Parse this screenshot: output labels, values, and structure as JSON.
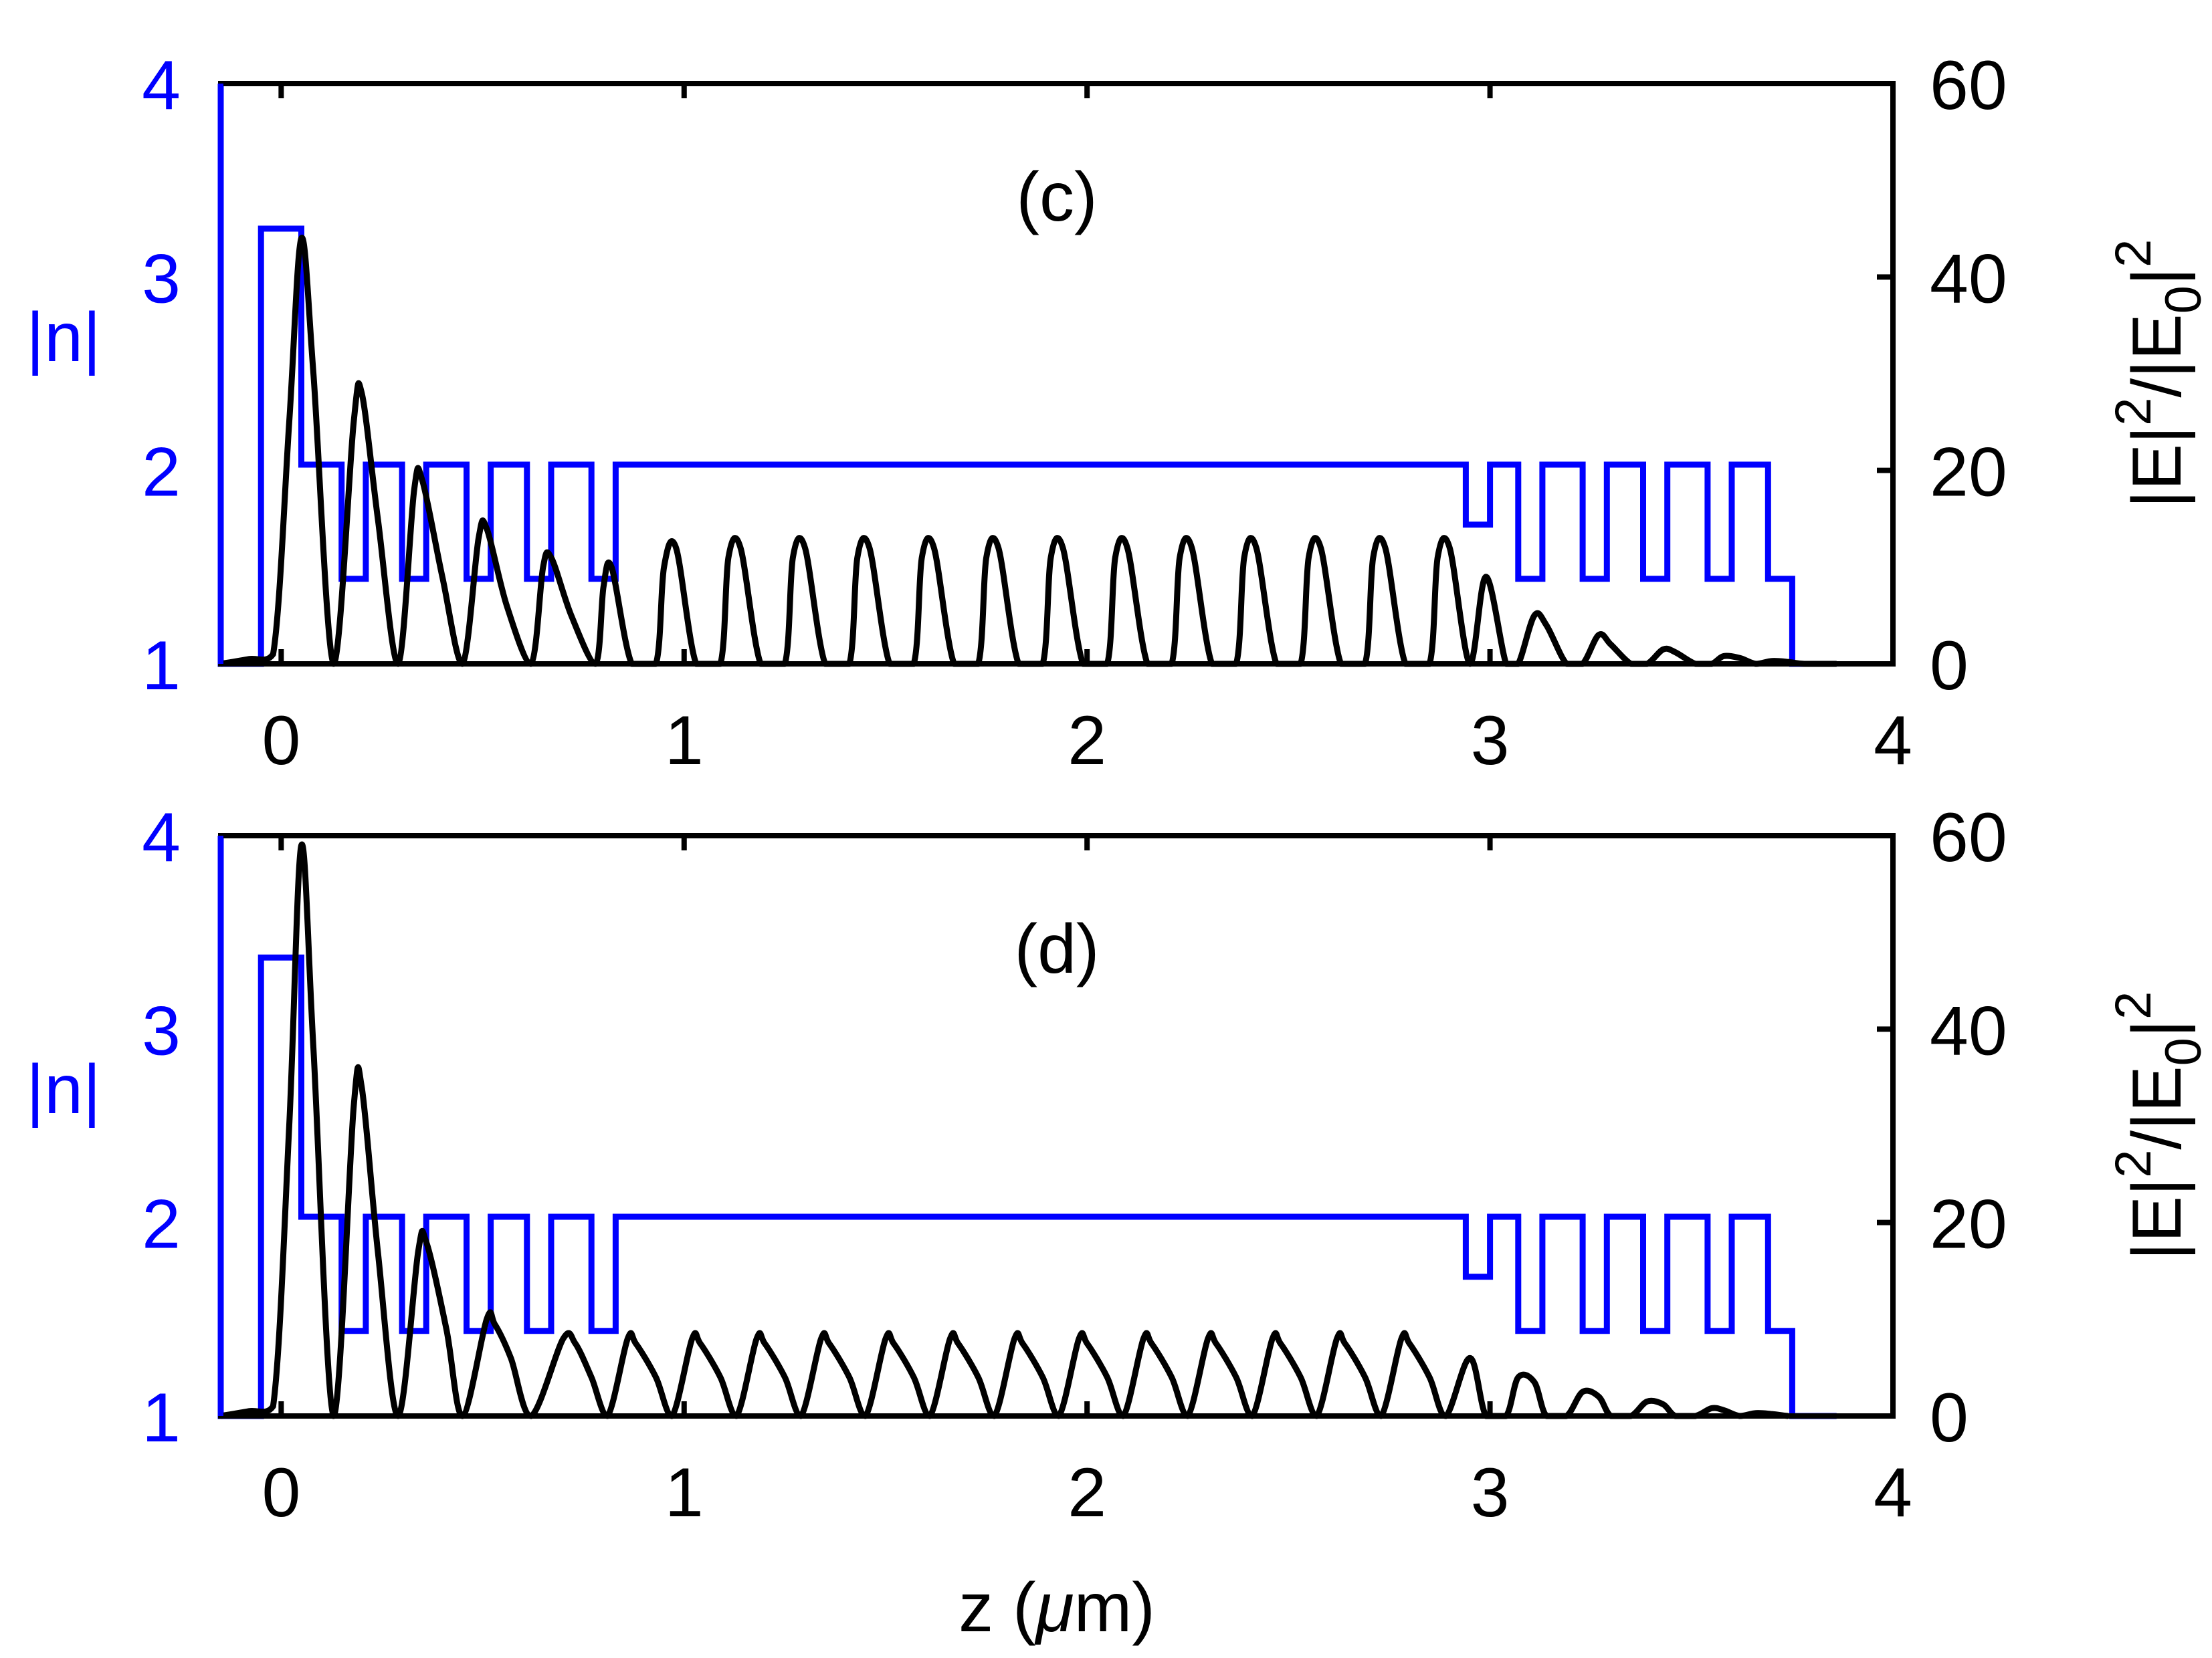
{
  "chart_data": [
    {
      "type": "line",
      "panel_label": "(c)",
      "x_axis": {
        "label": "",
        "range": [
          -0.15,
          4.0
        ],
        "ticks": [
          "0",
          "1",
          "2",
          "3",
          "4"
        ]
      },
      "y_left": {
        "label": "|n|",
        "range": [
          1,
          4
        ],
        "ticks": [
          "1",
          "2",
          "3",
          "4"
        ],
        "color": "#0000ff"
      },
      "y_right": {
        "label_base": "|E|",
        "sup1": "2",
        "mid": "/|E",
        "sub": "0",
        "close": "|",
        "sup2": "2",
        "range": [
          0,
          60
        ],
        "ticks": [
          "0",
          "20",
          "40",
          "60"
        ],
        "color": "#000000"
      },
      "index_profile": {
        "color": "#0000ff",
        "z": [
          -0.15,
          -0.15,
          -0.15,
          -0.1,
          -0.1,
          -0.05,
          -0.05,
          0.05,
          0.05,
          0.15,
          0.15,
          0.21,
          0.21,
          0.3,
          0.3,
          0.36,
          0.36,
          0.46,
          0.46,
          0.52,
          0.52,
          0.61,
          0.61,
          0.67,
          0.67,
          0.77,
          0.77,
          0.83,
          0.83,
          2.94,
          2.94,
          3.0,
          3.0,
          3.07,
          3.07,
          3.13,
          3.13,
          3.23,
          3.23,
          3.29,
          3.29,
          3.38,
          3.38,
          3.44,
          3.44,
          3.54,
          3.54,
          3.6,
          3.6,
          3.69,
          3.69,
          3.75,
          3.75,
          3.86
        ],
        "n": [
          4.0,
          1.0,
          1.0,
          1.0,
          1.0,
          1.0,
          3.25,
          3.25,
          2.03,
          2.03,
          1.44,
          1.44,
          2.03,
          2.03,
          1.44,
          1.44,
          2.03,
          2.03,
          1.44,
          1.44,
          2.03,
          2.03,
          1.44,
          1.44,
          2.03,
          2.03,
          1.44,
          1.44,
          2.03,
          2.03,
          1.72,
          1.72,
          2.03,
          2.03,
          1.44,
          1.44,
          2.03,
          2.03,
          1.44,
          1.44,
          2.03,
          2.03,
          1.44,
          1.44,
          2.03,
          2.03,
          1.44,
          1.44,
          2.03,
          2.03,
          1.44,
          1.44,
          1.0,
          1.0
        ]
      },
      "field_intensity": {
        "color": "#000000",
        "z": [
          -0.15,
          -0.08,
          -0.02,
          0.02,
          0.05,
          0.08,
          0.13,
          0.18,
          0.2,
          0.24,
          0.29,
          0.33,
          0.35,
          0.4,
          0.45,
          0.49,
          0.51,
          0.56,
          0.62,
          0.65,
          0.67,
          0.72,
          0.78,
          0.8,
          0.82,
          0.87,
          0.93,
          0.95,
          0.98,
          1.03,
          1.09,
          1.11,
          1.14,
          1.19,
          1.25,
          1.27,
          1.3,
          1.35,
          1.41,
          1.43,
          1.46,
          1.51,
          1.57,
          1.59,
          1.62,
          1.67,
          1.73,
          1.75,
          1.78,
          1.83,
          1.89,
          1.91,
          1.94,
          1.99,
          2.05,
          2.07,
          2.1,
          2.15,
          2.21,
          2.23,
          2.26,
          2.31,
          2.37,
          2.39,
          2.42,
          2.47,
          2.53,
          2.55,
          2.58,
          2.63,
          2.69,
          2.71,
          2.74,
          2.79,
          2.85,
          2.87,
          2.9,
          2.95,
          2.99,
          3.04,
          3.07,
          3.11,
          3.14,
          3.19,
          3.23,
          3.27,
          3.3,
          3.35,
          3.39,
          3.43,
          3.46,
          3.51,
          3.55,
          3.58,
          3.62,
          3.66,
          3.7,
          3.74,
          3.78,
          3.86
        ],
        "E2": [
          0,
          0.5,
          1,
          25,
          44,
          30,
          0,
          25,
          28,
          15,
          0,
          18,
          19,
          9,
          0,
          13,
          14,
          6,
          0,
          10,
          11,
          5,
          0,
          8,
          10,
          0,
          0,
          10,
          12,
          0,
          0,
          11,
          12,
          0,
          0,
          11,
          12,
          0,
          0,
          11,
          12,
          0,
          0,
          11,
          12,
          0,
          0,
          11,
          12,
          0,
          0,
          11,
          12,
          0,
          0,
          11,
          12,
          0,
          0,
          11,
          12,
          0,
          0,
          11,
          12,
          0,
          0,
          11,
          12,
          0,
          0,
          11,
          12,
          0,
          0,
          11,
          12,
          0,
          9,
          0,
          0,
          5,
          4,
          0,
          0,
          3,
          2,
          0,
          0,
          1.5,
          1.2,
          0,
          0,
          0.8,
          0.6,
          0,
          0.3,
          0.2,
          0,
          0
        ]
      }
    },
    {
      "type": "line",
      "panel_label": "(d)",
      "x_axis": {
        "label": "z (",
        "label_mu": "μ",
        "label_end": "m)",
        "range": [
          -0.15,
          4.0
        ],
        "ticks": [
          "0",
          "1",
          "2",
          "3",
          "4"
        ]
      },
      "y_left": {
        "label": "|n|",
        "range": [
          1,
          4
        ],
        "ticks": [
          "1",
          "2",
          "3",
          "4"
        ],
        "color": "#0000ff"
      },
      "y_right": {
        "label_base": "|E|",
        "sup1": "2",
        "mid": "/|E",
        "sub": "0",
        "close": "|",
        "sup2": "2",
        "range": [
          0,
          60
        ],
        "ticks": [
          "0",
          "20",
          "40",
          "60"
        ],
        "color": "#000000"
      },
      "index_profile": {
        "color": "#0000ff",
        "z": [
          -0.15,
          -0.15,
          -0.15,
          -0.1,
          -0.1,
          -0.05,
          -0.05,
          0.05,
          0.05,
          0.15,
          0.15,
          0.21,
          0.21,
          0.3,
          0.3,
          0.36,
          0.36,
          0.46,
          0.46,
          0.52,
          0.52,
          0.61,
          0.61,
          0.67,
          0.67,
          0.77,
          0.77,
          0.83,
          0.83,
          2.94,
          2.94,
          3.0,
          3.0,
          3.07,
          3.07,
          3.13,
          3.13,
          3.23,
          3.23,
          3.29,
          3.29,
          3.38,
          3.38,
          3.44,
          3.44,
          3.54,
          3.54,
          3.6,
          3.6,
          3.69,
          3.69,
          3.75,
          3.75,
          3.86
        ],
        "n": [
          4.0,
          1.0,
          1.0,
          1.0,
          1.0,
          1.0,
          3.37,
          3.37,
          2.03,
          2.03,
          1.44,
          1.44,
          2.03,
          2.03,
          1.44,
          1.44,
          2.03,
          2.03,
          1.44,
          1.44,
          2.03,
          2.03,
          1.44,
          1.44,
          2.03,
          2.03,
          1.44,
          1.44,
          2.03,
          2.03,
          1.72,
          1.72,
          2.03,
          2.03,
          1.44,
          1.44,
          2.03,
          2.03,
          1.44,
          1.44,
          2.03,
          2.03,
          1.44,
          1.44,
          2.03,
          2.03,
          1.44,
          1.44,
          2.03,
          2.03,
          1.44,
          1.44,
          1.0,
          1.0
        ]
      },
      "field_intensity": {
        "color": "#000000",
        "z": [
          -0.15,
          -0.08,
          -0.02,
          0.02,
          0.05,
          0.08,
          0.13,
          0.18,
          0.2,
          0.24,
          0.29,
          0.34,
          0.36,
          0.41,
          0.45,
          0.51,
          0.53,
          0.57,
          0.62,
          0.7,
          0.73,
          0.77,
          0.81,
          0.86,
          0.88,
          0.93,
          0.97,
          1.02,
          1.04,
          1.09,
          1.13,
          1.18,
          1.2,
          1.25,
          1.29,
          1.34,
          1.36,
          1.41,
          1.45,
          1.5,
          1.52,
          1.57,
          1.61,
          1.66,
          1.68,
          1.73,
          1.77,
          1.82,
          1.84,
          1.89,
          1.93,
          1.98,
          2.0,
          2.05,
          2.09,
          2.14,
          2.16,
          2.21,
          2.25,
          2.3,
          2.32,
          2.37,
          2.41,
          2.46,
          2.48,
          2.53,
          2.57,
          2.62,
          2.64,
          2.69,
          2.73,
          2.78,
          2.8,
          2.85,
          2.89,
          2.95,
          2.99,
          3.04,
          3.07,
          3.11,
          3.14,
          3.19,
          3.23,
          3.27,
          3.3,
          3.35,
          3.39,
          3.43,
          3.46,
          3.51,
          3.55,
          3.58,
          3.62,
          3.66,
          3.7,
          3.74,
          3.78,
          3.86
        ],
        "E2": [
          0,
          0.5,
          1,
          30,
          59,
          38,
          0,
          32,
          34,
          17,
          0,
          17,
          18,
          9,
          0,
          10,
          9.5,
          6,
          0,
          8,
          7.5,
          4,
          0,
          8,
          7.5,
          4,
          0,
          8,
          7.5,
          4,
          0,
          8,
          7.5,
          4,
          0,
          8,
          7.5,
          4,
          0,
          8,
          7.5,
          4,
          0,
          8,
          7.5,
          4,
          0,
          8,
          7.5,
          4,
          0,
          8,
          7.5,
          4,
          0,
          8,
          7.5,
          4,
          0,
          8,
          7.5,
          4,
          0,
          8,
          7.5,
          4,
          0,
          8,
          7.5,
          4,
          0,
          8,
          7.5,
          4,
          0,
          6,
          0,
          0,
          4,
          3.5,
          0,
          0,
          2.5,
          2,
          0,
          0,
          1.5,
          1.2,
          0,
          0,
          0.8,
          0.6,
          0,
          0.3,
          0.2,
          0,
          0
        ]
      }
    }
  ]
}
